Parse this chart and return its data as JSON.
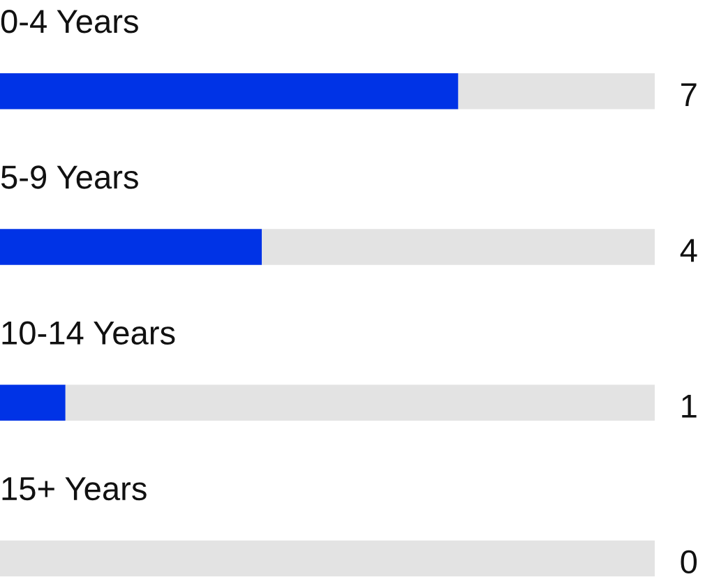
{
  "chart_data": {
    "type": "bar",
    "orientation": "horizontal",
    "stacked": true,
    "categories": [
      "0-4 Years",
      "5-9 Years",
      "10-14 Years",
      "15+ Years"
    ],
    "series": [
      {
        "color": "#0033e6",
        "values": [
          7,
          4,
          1,
          0
        ],
        "value_labels": [
          "7",
          "4",
          "1",
          "0"
        ]
      },
      {
        "color": "#e3e3e3",
        "values": [
          3,
          6,
          9,
          10
        ]
      }
    ],
    "xlim": [
      0,
      10
    ]
  }
}
